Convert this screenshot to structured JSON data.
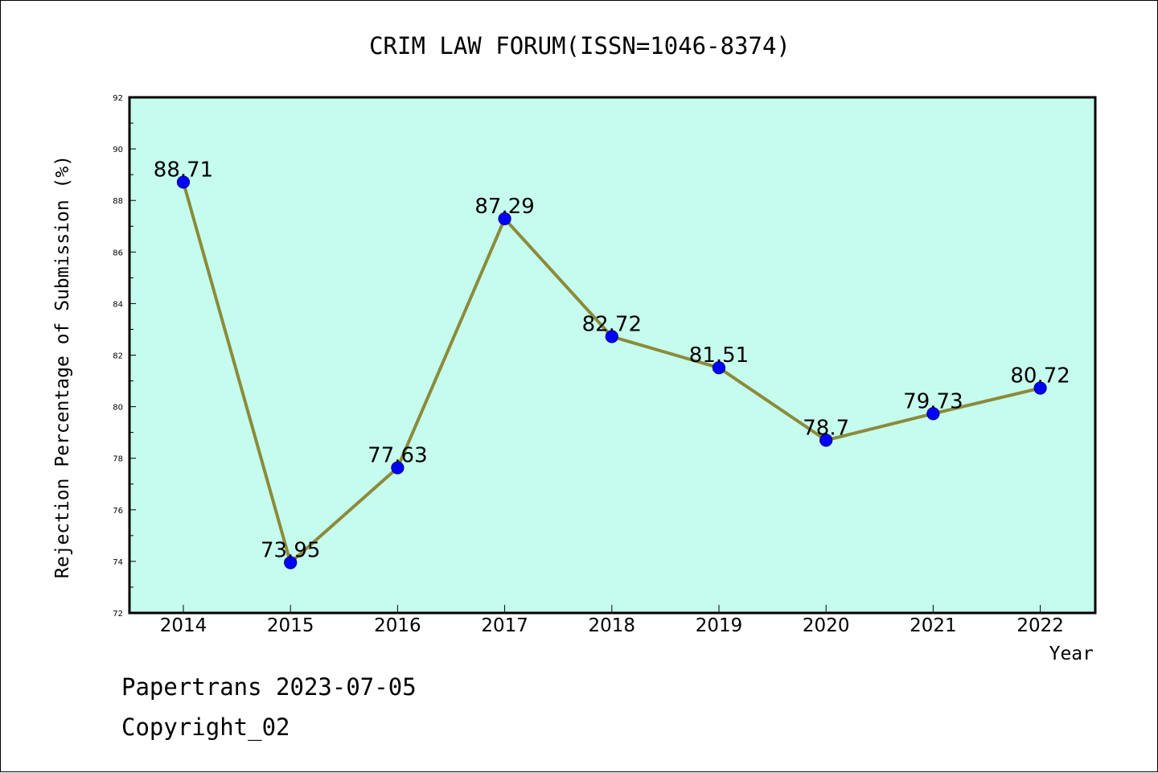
{
  "chart_data": {
    "type": "line",
    "title": "CRIM LAW FORUM(ISSN=1046-8374)",
    "xlabel": "Year",
    "ylabel": "Rejection Percentage of Submission (%)",
    "categories": [
      "2014",
      "2015",
      "2016",
      "2017",
      "2018",
      "2019",
      "2020",
      "2021",
      "2022"
    ],
    "values": [
      88.71,
      73.95,
      77.63,
      87.29,
      82.72,
      81.51,
      78.7,
      79.73,
      80.72
    ],
    "data_labels": [
      "88.71",
      "73.95",
      "77.63",
      "87.29",
      "82.72",
      "81.51",
      "78.7",
      "79.73",
      "80.72"
    ],
    "ylim": [
      72,
      92
    ],
    "yticks": [
      72,
      74,
      76,
      78,
      80,
      82,
      84,
      86,
      88,
      90,
      92
    ],
    "grid": false,
    "colors": {
      "plot_background": "#c6fcee",
      "line": "#8b8b3a",
      "marker_fill": "#0000ff",
      "marker_edge": "#00008b"
    }
  },
  "footer": {
    "line1": "Papertrans 2023-07-05",
    "line2": "Copyright_02"
  }
}
